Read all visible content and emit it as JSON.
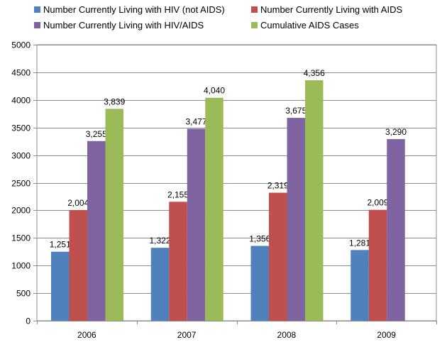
{
  "chart_data": {
    "type": "bar",
    "title": "",
    "xlabel": "",
    "ylabel": "",
    "categories": [
      "2006",
      "2007",
      "2008",
      "2009"
    ],
    "ylim": [
      0,
      5000
    ],
    "yticks": [
      0,
      500,
      1000,
      1500,
      2000,
      2500,
      3000,
      3500,
      4000,
      4500,
      5000
    ],
    "grid": true,
    "legend_position": "top",
    "series": [
      {
        "name": "Number Currently Living with HIV (not AIDS)",
        "color": "#4F81BD",
        "values": [
          1251,
          1322,
          1356,
          1281
        ],
        "labels": [
          "1,251",
          "1,322",
          "1,356",
          "1,281"
        ]
      },
      {
        "name": "Number Currently Living with AIDS",
        "color": "#C0504D",
        "values": [
          2004,
          2155,
          2319,
          2009
        ],
        "labels": [
          "2,004",
          "2,155",
          "2,319",
          "2,009"
        ]
      },
      {
        "name": "Number Currently Living with HIV/AIDS",
        "color": "#8064A2",
        "values": [
          3255,
          3477,
          3675,
          3290
        ],
        "labels": [
          "3,255",
          "3,477",
          "3,675",
          "3,290"
        ]
      },
      {
        "name": "Cumulative AIDS Cases",
        "color": "#9BBB59",
        "values": [
          3839,
          4040,
          4356,
          null
        ],
        "labels": [
          "3,839",
          "4,040",
          "4,356",
          null
        ]
      }
    ]
  }
}
